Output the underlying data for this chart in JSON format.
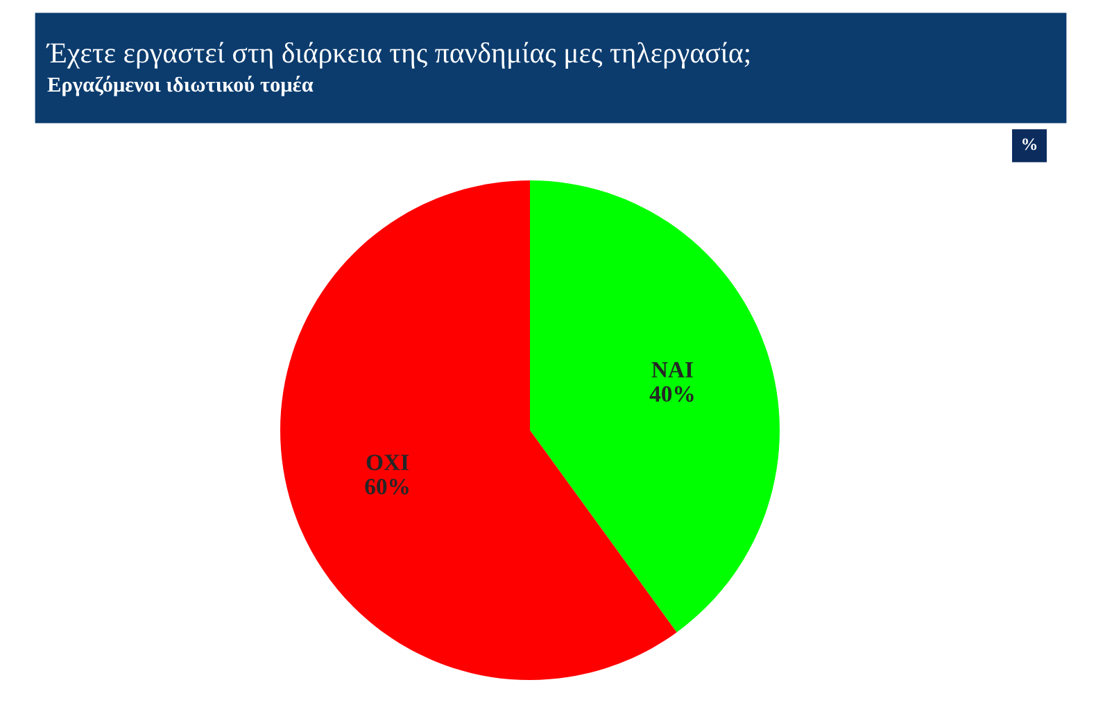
{
  "chart_data": {
    "type": "pie",
    "title": "Έχετε εργαστεί στη διάρκεια της πανδημίας μες τηλεργασία;",
    "subtitle": "Εργαζόμενοι ιδιωτικού τομέα",
    "categories": [
      "ΝΑΙ",
      "ΟΧΙ"
    ],
    "values": [
      40,
      60
    ],
    "colors": [
      "#00ff00",
      "#ff0000"
    ],
    "value_labels": [
      "40%",
      "60%"
    ],
    "annotations": [
      "%"
    ]
  }
}
